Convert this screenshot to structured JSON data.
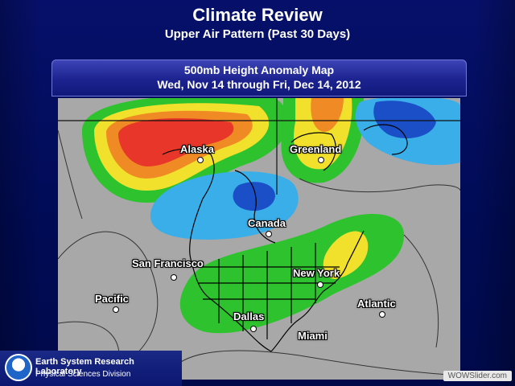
{
  "slide": {
    "title": "Climate Review",
    "subtitle": "Upper Air Pattern (Past 30 Days)"
  },
  "map": {
    "header_line1": "500mb Height Anomaly Map",
    "header_line2": "Wed, Nov 14 through Fri, Dec 14, 2012",
    "colors": {
      "background": "#a8a8a8",
      "strong_positive": "#e8372a",
      "positive_orange": "#f08a24",
      "positive_yellow": "#f2e12c",
      "weak_positive_green": "#2ec32e",
      "weak_negative_light_blue": "#3aaee8",
      "strong_negative_blue": "#1a4fc8",
      "deep_blue": "#1535a0"
    },
    "labels": {
      "alaska": "Alaska",
      "greenland": "Greenland",
      "canada": "Canada",
      "san_francisco": "San Francisco",
      "new_york": "New York",
      "pacific": "Pacific",
      "atlantic": "Atlantic",
      "dallas": "Dallas",
      "miami": "Miami"
    }
  },
  "logo": {
    "name": "Earth System Research Laboratory",
    "division": "Physical Sciences Division",
    "seal_icon": "noaa-seal-icon"
  },
  "watermark": {
    "text": "WOWSlider.com"
  }
}
